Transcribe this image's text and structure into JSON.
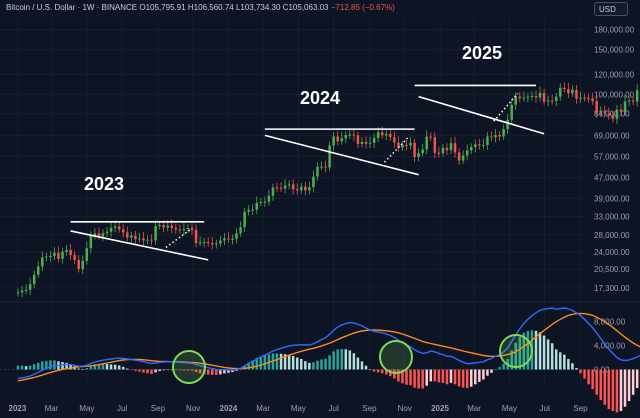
{
  "header": {
    "symbol": "Bitcoin / U.S. Dollar · 1W · BINANCE",
    "open_label": "O",
    "open": "105,795.91",
    "high_label": "H",
    "high": "106,560.74",
    "low_label": "L",
    "low": "103,734.30",
    "close_label": "C",
    "close": "105,063.03",
    "change": "−712.85 (−0.67%)",
    "currency": "USD"
  },
  "colors": {
    "background": "#0d1424",
    "up": "#26a69a",
    "up_candle": "#4caf50",
    "down_candle": "#ef5350",
    "macd_line": "#2f6bff",
    "signal_line": "#ff8a1f",
    "highlight_circle": "#7ed957"
  },
  "chart_data": [
    {
      "type": "candlestick",
      "title": "",
      "y_scale": "log",
      "ylim": [
        15500,
        200000
      ],
      "x_tick_labels": [
        "2023",
        "Mar",
        "May",
        "Jul",
        "Sep",
        "Nov",
        "2024",
        "Mar",
        "May",
        "Jul",
        "Sep",
        "Nov",
        "2025",
        "Mar",
        "May",
        "Jul",
        "Sep"
      ],
      "y_tick_labels": [
        "180,000.00",
        "150,000.00",
        "120,000.00",
        "100,000.00",
        "84,000.00",
        "69,000.00",
        "57,000.00",
        "47,000.00",
        "39,000.00",
        "33,000.00",
        "28,000.00",
        "24,000.00",
        "20,500.00",
        "17,300.00"
      ],
      "y_tick_values": [
        180000,
        150000,
        120000,
        100000,
        84000,
        69000,
        57000,
        47000,
        39000,
        33000,
        28000,
        24000,
        20500,
        17300
      ],
      "weekly_closes": [
        16600,
        16900,
        17000,
        17900,
        19500,
        21000,
        22800,
        23000,
        23100,
        23800,
        22500,
        24000,
        24400,
        23300,
        22300,
        20500,
        22100,
        24800,
        27800,
        28400,
        27600,
        28400,
        28800,
        29800,
        30200,
        29400,
        28600,
        27300,
        27800,
        26900,
        27100,
        26600,
        26800,
        26600,
        30300,
        30600,
        29900,
        30400,
        29800,
        29400,
        29200,
        29500,
        29800,
        29300,
        26000,
        26100,
        26200,
        26000,
        25700,
        25900,
        26600,
        27100,
        26900,
        27000,
        28400,
        30000,
        34500,
        35100,
        35200,
        37400,
        37700,
        37800,
        39900,
        43000,
        42900,
        42600,
        43800,
        44200,
        42300,
        41900,
        43300,
        41900,
        43100,
        47500,
        51900,
        52000,
        51600,
        62900,
        68300,
        65400,
        67200,
        69200,
        69500,
        68900,
        63800,
        65000,
        63900,
        64500,
        67400,
        71000,
        69000,
        70000,
        67900,
        64600,
        61800,
        63200,
        62900,
        64500,
        56700,
        58700,
        60700,
        68200,
        67800,
        58900,
        58600,
        61600,
        60300,
        64300,
        59100,
        54900,
        57500,
        60200,
        62000,
        63600,
        63000,
        63200,
        68300,
        67800,
        69200,
        68300,
        73000,
        79500,
        91000,
        98000,
        96700,
        97200,
        98000,
        98600,
        97300,
        101400,
        93700,
        94500,
        94300,
        98000,
        106200,
        104900,
        101100,
        104200,
        96300,
        97200,
        96700,
        96600,
        94200,
        84800,
        86300,
        84200,
        82900,
        80200,
        87200,
        85400,
        93900,
        94600,
        93800,
        104000,
        104100,
        109000,
        104900,
        105600,
        103300,
        105063
      ],
      "start_week": "2023-01-02",
      "annotations": [
        {
          "text": "2023",
          "type": "year-label"
        },
        {
          "text": "2024",
          "type": "year-label"
        },
        {
          "text": "2025",
          "type": "year-label"
        }
      ],
      "patterns": [
        {
          "name": "2023",
          "resistance_price": 31500,
          "support_from": [
            29000,
            "2023-04-03"
          ],
          "support_to": [
            22300,
            "2023-11-27"
          ],
          "breakout_week": "2023-10-23"
        },
        {
          "name": "2024",
          "resistance_price": 73000,
          "support_from": [
            69000,
            "2024-03-04"
          ],
          "support_to": [
            48300,
            "2024-11-25"
          ],
          "breakout_week": "2024-11-04"
        },
        {
          "name": "2025",
          "resistance_price": 108500,
          "support_from": [
            98000,
            "2024-11-25"
          ],
          "support_to": [
            70000,
            "2025-06-30"
          ],
          "breakout_week": "2025-05-12"
        }
      ]
    },
    {
      "type": "macd",
      "ylim": [
        -2600,
        10800
      ],
      "y_tick_labels": [
        "8,000.00",
        "4,000.00",
        "0.00"
      ],
      "y_tick_values": [
        8000,
        4000,
        0
      ],
      "macd_line": [
        -1500,
        -1400,
        -1300,
        -1100,
        -800,
        -450,
        -100,
        200,
        450,
        650,
        700,
        780,
        850,
        800,
        700,
        550,
        550,
        700,
        1000,
        1250,
        1400,
        1550,
        1650,
        1750,
        1850,
        1900,
        1850,
        1750,
        1650,
        1550,
        1450,
        1300,
        1150,
        1000,
        1100,
        1200,
        1250,
        1300,
        1300,
        1250,
        1200,
        1150,
        1100,
        1050,
        850,
        650,
        450,
        300,
        150,
        20,
        -50,
        -60,
        -80,
        -80,
        20,
        200,
        600,
        1000,
        1350,
        1750,
        2100,
        2400,
        2750,
        3100,
        3350,
        3550,
        3750,
        3950,
        4050,
        4100,
        4150,
        4100,
        4100,
        4300,
        4650,
        5000,
        5300,
        5900,
        6600,
        7100,
        7450,
        7700,
        7850,
        7800,
        7550,
        7300,
        6950,
        6600,
        6400,
        6300,
        6150,
        5950,
        5700,
        5350,
        4900,
        4500,
        4100,
        3800,
        3300,
        2950,
        2700,
        2800,
        3100,
        2950,
        2700,
        2500,
        2200,
        2200,
        1900,
        1500,
        1200,
        1000,
        1000,
        1100,
        1200,
        1300,
        1600,
        1850,
        2200,
        2500,
        2950,
        3600,
        4700,
        5800,
        6800,
        7700,
        8400,
        9000,
        9500,
        9900,
        10100,
        10200,
        10300,
        10100,
        10200,
        10300,
        10150,
        9900,
        9500,
        9000,
        8400,
        7700,
        7000,
        6100,
        5200,
        4300,
        3400,
        2700,
        2000,
        1600,
        1500,
        1600,
        1800,
        2100,
        2400,
        3000,
        3500,
        3900,
        4100,
        4300,
        4500,
        4600
      ],
      "signal_line": [
        -1900,
        -1800,
        -1650,
        -1500,
        -1350,
        -1150,
        -950,
        -700,
        -500,
        -300,
        -150,
        0,
        150,
        250,
        350,
        450,
        500,
        550,
        620,
        700,
        820,
        950,
        1080,
        1220,
        1350,
        1480,
        1580,
        1650,
        1680,
        1690,
        1670,
        1620,
        1550,
        1470,
        1400,
        1360,
        1330,
        1320,
        1310,
        1300,
        1280,
        1250,
        1210,
        1180,
        1130,
        1050,
        950,
        840,
        720,
        590,
        460,
        350,
        260,
        190,
        150,
        150,
        200,
        280,
        400,
        550,
        750,
        950,
        1180,
        1420,
        1660,
        1900,
        2150,
        2400,
        2630,
        2850,
        3050,
        3230,
        3400,
        3550,
        3730,
        3950,
        4180,
        4420,
        4700,
        5000,
        5300,
        5580,
        5850,
        6100,
        6300,
        6450,
        6550,
        6600,
        6620,
        6600,
        6550,
        6480,
        6400,
        6300,
        6150,
        5950,
        5700,
        5450,
        5200,
        4950,
        4700,
        4500,
        4350,
        4200,
        4050,
        3900,
        3750,
        3600,
        3450,
        3280,
        3100,
        2950,
        2800,
        2650,
        2500,
        2350,
        2250,
        2200,
        2200,
        2250,
        2350,
        2500,
        2700,
        3000,
        3400,
        3850,
        4350,
        4900,
        5450,
        6000,
        6550,
        7050,
        7550,
        8000,
        8400,
        8750,
        9050,
        9250,
        9350,
        9400,
        9350,
        9250,
        9050,
        8750,
        8400,
        8000,
        7550,
        7050,
        6500,
        5950,
        5400,
        4900,
        4450,
        4050,
        3700,
        3450,
        3300,
        3250,
        3300,
        3400,
        3500,
        3700,
        3850
      ]
    }
  ]
}
